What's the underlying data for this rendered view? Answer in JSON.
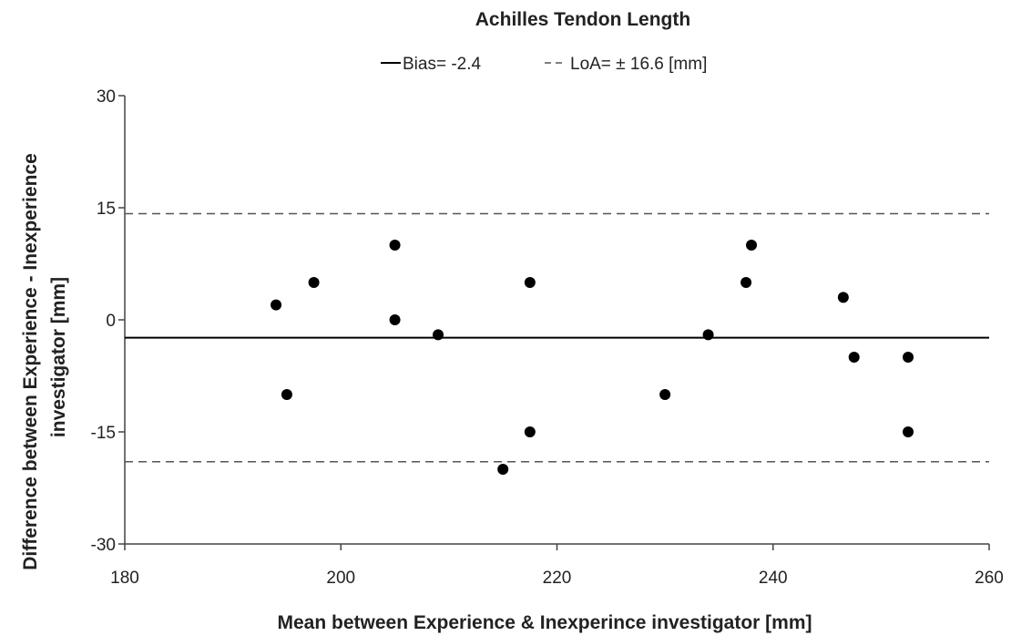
{
  "chart_data": {
    "type": "scatter",
    "title": "Achilles Tendon Length",
    "xlabel": "Mean between Experience & Inexperince investigator  [mm]",
    "ylabel_line1": "Difference between Experience - Inexperience",
    "ylabel_line2": "investigator [mm]",
    "xlim": [
      180,
      260
    ],
    "ylim": [
      -30,
      30
    ],
    "xticks": [
      180,
      200,
      220,
      240,
      260
    ],
    "yticks": [
      30,
      15,
      0,
      -15,
      -30
    ],
    "legend": {
      "bias_label": "Bias= -2.4",
      "loa_label": "LoA= ± 16.6 [mm]"
    },
    "bias": -2.4,
    "loa_upper": 14.2,
    "loa_lower": -19.0,
    "grid": false,
    "colors": {
      "points": "#000000",
      "lines": "#000000",
      "dashed": "#555555"
    },
    "points": [
      {
        "x": 194,
        "y": 2
      },
      {
        "x": 195,
        "y": -10
      },
      {
        "x": 197.5,
        "y": 5
      },
      {
        "x": 205,
        "y": 10
      },
      {
        "x": 205,
        "y": 0
      },
      {
        "x": 209,
        "y": -2
      },
      {
        "x": 215,
        "y": -20
      },
      {
        "x": 217.5,
        "y": 5
      },
      {
        "x": 217.5,
        "y": -15
      },
      {
        "x": 230,
        "y": -10
      },
      {
        "x": 234,
        "y": -2
      },
      {
        "x": 237.5,
        "y": 5
      },
      {
        "x": 238,
        "y": 10
      },
      {
        "x": 246.5,
        "y": 3
      },
      {
        "x": 247.5,
        "y": -5
      },
      {
        "x": 252.5,
        "y": -5
      },
      {
        "x": 252.5,
        "y": -15
      }
    ]
  }
}
